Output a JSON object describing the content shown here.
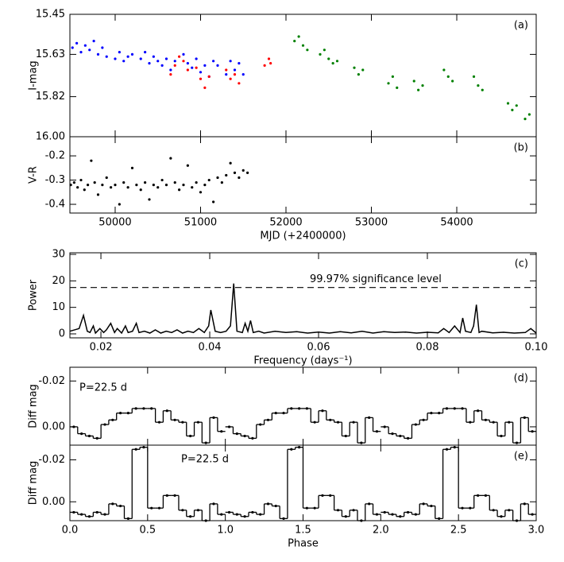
{
  "chart_data": [
    {
      "type": "scatter",
      "panel_label": "(a)",
      "ylabel": "I-mag",
      "xlim": [
        49470,
        54930
      ],
      "ylim": [
        16.0,
        15.45
      ],
      "yticks": [
        15.45,
        15.63,
        15.82,
        {
          "value": 16.0,
          "label": "16.00"
        }
      ],
      "series": [
        {
          "color": "#0000ff",
          "x": [
            49500,
            49550,
            49600,
            49650,
            49700,
            49750,
            49800,
            49850,
            49900,
            50000,
            50050,
            50100,
            50150,
            50200,
            50300,
            50350,
            50400,
            50450,
            50500,
            50550,
            50600,
            50650,
            50700,
            50800,
            50850,
            50900,
            50950,
            51000,
            51050,
            51100,
            51150,
            51200,
            51300,
            51350,
            51400,
            51450,
            51500
          ],
          "values": [
            15.6,
            15.58,
            15.62,
            15.59,
            15.61,
            15.57,
            15.63,
            15.6,
            15.64,
            15.65,
            15.62,
            15.66,
            15.64,
            15.63,
            15.65,
            15.62,
            15.67,
            15.64,
            15.66,
            15.68,
            15.65,
            15.7,
            15.66,
            15.63,
            15.67,
            15.69,
            15.65,
            15.71,
            15.68,
            15.73,
            15.66,
            15.68,
            15.72,
            15.66,
            15.7,
            15.67,
            15.72
          ]
        },
        {
          "color": "#ff0000",
          "x": [
            50650,
            50700,
            50750,
            50800,
            50850,
            50950,
            51000,
            51050,
            51100,
            51300,
            51350,
            51400,
            51450,
            51750,
            51800,
            51820
          ],
          "values": [
            15.72,
            15.68,
            15.64,
            15.66,
            15.7,
            15.69,
            15.74,
            15.78,
            15.73,
            15.7,
            15.74,
            15.72,
            15.76,
            15.68,
            15.65,
            15.67
          ]
        },
        {
          "color": "#008000",
          "x": [
            52100,
            52150,
            52200,
            52250,
            52400,
            52450,
            52500,
            52550,
            52600,
            52800,
            52850,
            52900,
            53200,
            53250,
            53300,
            53500,
            53550,
            53600,
            53850,
            53900,
            53950,
            54200,
            54250,
            54300,
            54600,
            54650,
            54700,
            54800,
            54850
          ],
          "values": [
            15.57,
            15.55,
            15.59,
            15.61,
            15.63,
            15.61,
            15.65,
            15.67,
            15.66,
            15.69,
            15.72,
            15.7,
            15.76,
            15.73,
            15.78,
            15.75,
            15.79,
            15.77,
            15.7,
            15.73,
            15.75,
            15.73,
            15.77,
            15.79,
            15.85,
            15.88,
            15.86,
            15.92,
            15.9
          ]
        }
      ]
    },
    {
      "type": "scatter",
      "panel_label": "(b)",
      "ylabel": "V-R",
      "xlabel": "MJD (+2400000)",
      "xlim": [
        49470,
        54930
      ],
      "ylim": [
        -0.436,
        -0.121
      ],
      "yticks": [
        -0.2,
        -0.3,
        -0.4
      ],
      "xticks": [
        50000,
        51000,
        52000,
        53000,
        54000
      ],
      "series": [
        {
          "color": "#000000",
          "x": [
            49480,
            49520,
            49560,
            49600,
            49640,
            49680,
            49720,
            49760,
            49800,
            49850,
            49900,
            49950,
            50000,
            50050,
            50100,
            50150,
            50200,
            50250,
            50300,
            50350,
            50400,
            50450,
            50500,
            50550,
            50600,
            50650,
            50700,
            50750,
            50800,
            50850,
            50900,
            50950,
            51000,
            51050,
            51100,
            51150,
            51200,
            51250,
            51300,
            51350,
            51400,
            51450,
            51500,
            51550
          ],
          "values": [
            -0.32,
            -0.31,
            -0.33,
            -0.3,
            -0.34,
            -0.32,
            -0.22,
            -0.31,
            -0.36,
            -0.32,
            -0.29,
            -0.33,
            -0.32,
            -0.4,
            -0.31,
            -0.33,
            -0.25,
            -0.32,
            -0.34,
            -0.31,
            -0.38,
            -0.32,
            -0.33,
            -0.3,
            -0.32,
            -0.21,
            -0.31,
            -0.34,
            -0.32,
            -0.24,
            -0.33,
            -0.31,
            -0.35,
            -0.32,
            -0.3,
            -0.39,
            -0.29,
            -0.31,
            -0.28,
            -0.23,
            -0.27,
            -0.29,
            -0.26,
            -0.27
          ]
        }
      ]
    },
    {
      "type": "line",
      "panel_label": "(c)",
      "ylabel": "Power",
      "xlabel": "Frequency (days⁻¹)",
      "xlim": [
        0.0143,
        0.1
      ],
      "ylim": [
        -1.5,
        30.6
      ],
      "yticks": [
        0,
        10,
        20,
        30
      ],
      "xticks": [
        0.02,
        0.04,
        0.06,
        0.08,
        {
          "value": 0.1,
          "label": "0.10"
        }
      ],
      "threshold": 17.5,
      "threshold_label": "99.97% significance level",
      "series": [
        {
          "color": "#000000",
          "x": [
            0.0143,
            0.016,
            0.0168,
            0.0175,
            0.018,
            0.0186,
            0.019,
            0.0198,
            0.0205,
            0.021,
            0.0218,
            0.0225,
            0.023,
            0.0238,
            0.0245,
            0.025,
            0.0258,
            0.0265,
            0.027,
            0.028,
            0.029,
            0.03,
            0.031,
            0.032,
            0.033,
            0.034,
            0.035,
            0.036,
            0.037,
            0.038,
            0.039,
            0.0398,
            0.0402,
            0.041,
            0.042,
            0.043,
            0.0438,
            0.0444,
            0.045,
            0.046,
            0.0465,
            0.047,
            0.0475,
            0.048,
            0.049,
            0.05,
            0.052,
            0.054,
            0.056,
            0.058,
            0.06,
            0.062,
            0.064,
            0.066,
            0.068,
            0.07,
            0.072,
            0.074,
            0.076,
            0.078,
            0.08,
            0.082,
            0.083,
            0.084,
            0.085,
            0.086,
            0.0865,
            0.087,
            0.088,
            0.0885,
            0.089,
            0.0895,
            0.09,
            0.092,
            0.094,
            0.096,
            0.098,
            0.099,
            0.1
          ],
          "values": [
            1,
            2,
            7,
            1,
            0.5,
            3,
            0.3,
            2,
            0.5,
            1.5,
            4,
            0.5,
            2,
            0.3,
            3,
            0.5,
            1,
            4,
            0.5,
            1,
            0.3,
            1.5,
            0.3,
            1,
            0.5,
            1.5,
            0.3,
            1,
            0.5,
            2,
            0.5,
            3,
            9,
            1,
            0.5,
            1,
            3,
            19,
            1,
            0.5,
            4,
            1,
            5,
            0.5,
            1,
            0.3,
            1,
            0.5,
            0.8,
            0.3,
            0.7,
            0.3,
            0.8,
            0.4,
            1,
            0.3,
            0.8,
            0.5,
            0.7,
            0.3,
            0.6,
            0.4,
            2,
            0.5,
            3,
            0.5,
            6,
            1,
            0.5,
            3,
            11,
            0.5,
            1,
            0.4,
            0.6,
            0.3,
            0.5,
            2,
            0.3
          ]
        }
      ]
    },
    {
      "type": "step",
      "panel_label": "(d)",
      "ylabel": "Diff mag",
      "annotation": "P=22.5 d",
      "xlim": [
        0,
        3
      ],
      "ylim": [
        0.008,
        -0.026
      ],
      "yticks": [
        -0.02,
        {
          "value": 0,
          "label": "0.00"
        }
      ],
      "series": [
        {
          "color": "#000000",
          "bins": [
            0,
            0.05,
            0.1,
            0.15,
            0.2,
            0.25,
            0.3,
            0.35,
            0.4,
            0.45,
            0.5,
            0.55,
            0.6,
            0.65,
            0.7,
            0.75,
            0.8,
            0.85,
            0.9,
            0.95,
            1
          ],
          "values": [
            0.0,
            0.003,
            0.004,
            0.005,
            -0.001,
            -0.003,
            -0.006,
            -0.006,
            -0.008,
            -0.008,
            -0.008,
            -0.002,
            -0.007,
            -0.003,
            -0.002,
            0.004,
            -0.002,
            0.007,
            -0.004,
            0.002
          ]
        }
      ]
    },
    {
      "type": "step",
      "panel_label": "(e)",
      "ylabel": "Diff mag",
      "xlabel": "Phase",
      "annotation": "P=22.5 d",
      "xlim": [
        0,
        3
      ],
      "ylim": [
        0.009,
        -0.027
      ],
      "yticks": [
        -0.02,
        {
          "value": 0,
          "label": "0.00"
        }
      ],
      "xticks": [
        {
          "value": 0,
          "label": "0.0"
        },
        0.5,
        {
          "value": 1,
          "label": "1.0"
        },
        1.5,
        {
          "value": 2,
          "label": "2.0"
        },
        2.5,
        {
          "value": 3,
          "label": "3.0"
        }
      ],
      "series": [
        {
          "color": "#000000",
          "bins": [
            0,
            0.05,
            0.1,
            0.15,
            0.2,
            0.25,
            0.3,
            0.35,
            0.4,
            0.45,
            0.5,
            0.55,
            0.6,
            0.65,
            0.7,
            0.75,
            0.8,
            0.85,
            0.9,
            0.95,
            1
          ],
          "values": [
            0.005,
            0.006,
            0.007,
            0.005,
            0.006,
            0.001,
            0.002,
            0.008,
            -0.025,
            -0.026,
            0.003,
            0.003,
            -0.003,
            -0.003,
            0.004,
            0.007,
            0.004,
            0.009,
            0.001,
            0.006
          ]
        }
      ]
    }
  ]
}
